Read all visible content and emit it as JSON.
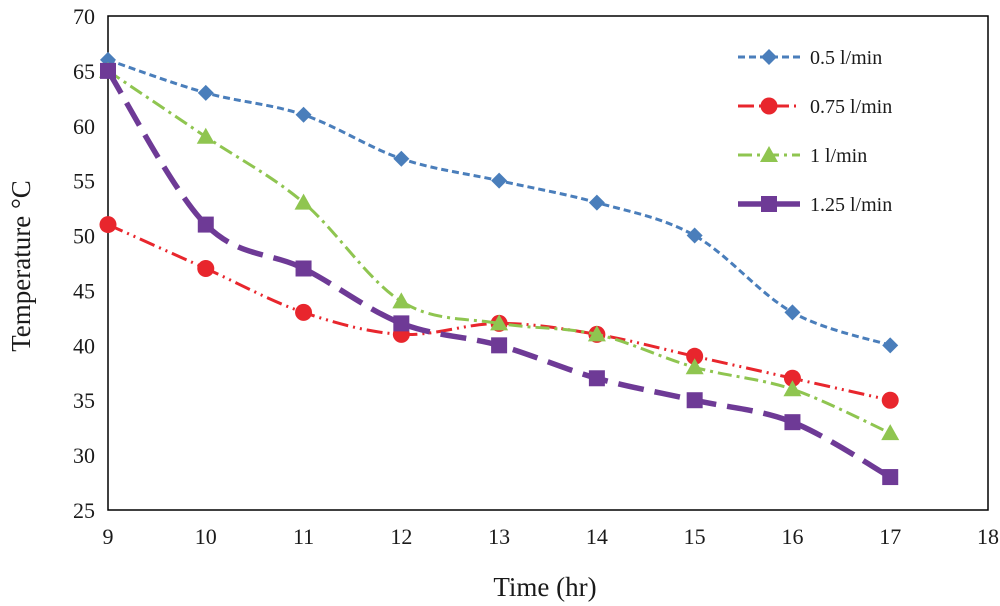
{
  "chart_data": {
    "type": "line",
    "title": "",
    "xlabel": "Time (hr)",
    "ylabel": "Temperature °C",
    "xlim": [
      9,
      18
    ],
    "ylim": [
      25,
      70
    ],
    "xticks": [
      9,
      10,
      11,
      12,
      13,
      14,
      15,
      16,
      17,
      18
    ],
    "yticks": [
      25,
      30,
      35,
      40,
      45,
      50,
      55,
      60,
      65,
      70
    ],
    "x": [
      9,
      10,
      11,
      12,
      13,
      14,
      15,
      16,
      17
    ],
    "legend_position": "top-right",
    "grid": false,
    "series": [
      {
        "name": "0.5 l/min",
        "marker": "diamond",
        "dash": "short-dash",
        "color": "#4a7ebb",
        "values": [
          66,
          63,
          61,
          57,
          55,
          53,
          50,
          43,
          40
        ]
      },
      {
        "name": "0.75 l/min",
        "marker": "circle",
        "dash": "dash-dot-dot",
        "color": "#e8262d",
        "values": [
          51,
          47,
          43,
          41,
          42,
          41,
          39,
          37,
          35
        ]
      },
      {
        "name": "1 l/min",
        "marker": "triangle",
        "dash": "dash-dot",
        "color": "#8fc550",
        "values": [
          65,
          59,
          53,
          44,
          42,
          41,
          38,
          36,
          32
        ]
      },
      {
        "name": "1.25 l/min",
        "marker": "square",
        "dash": "long-dash",
        "color": "#6e3a96",
        "values": [
          65,
          51,
          47,
          42,
          40,
          37,
          35,
          33,
          28
        ]
      }
    ]
  }
}
